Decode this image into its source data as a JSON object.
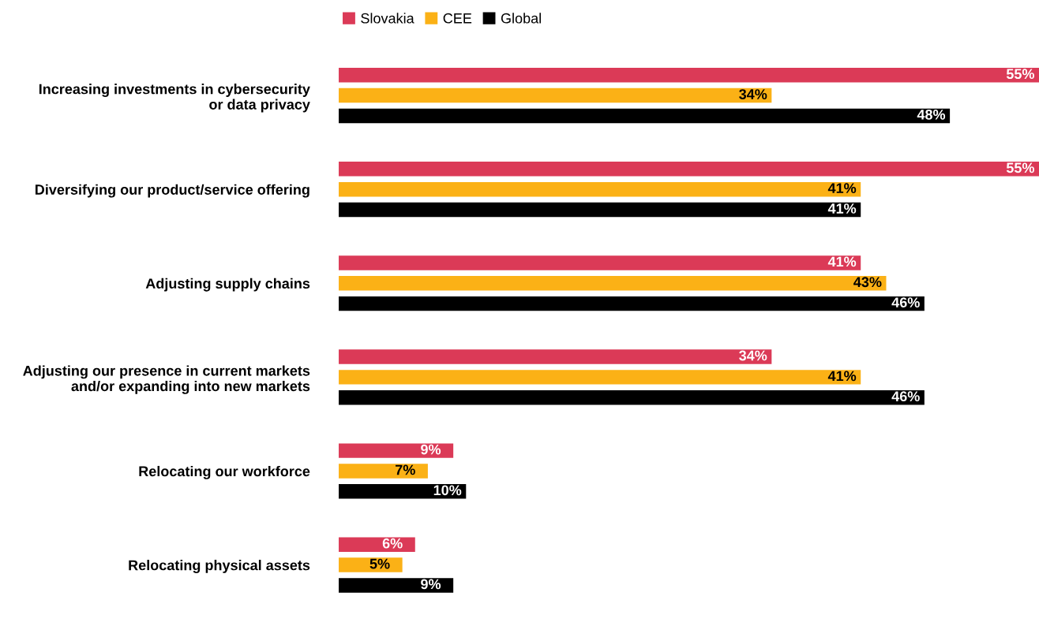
{
  "chart_data": {
    "type": "bar",
    "orientation": "horizontal",
    "categories": [
      "Increasing investments in cybersecurity\nor data privacy",
      "Diversifying our product/service offering",
      "Adjusting supply chains",
      "Adjusting our presence in current markets\nand/or expanding into new markets",
      "Relocating our workforce",
      "Relocating physical assets"
    ],
    "series": [
      {
        "name": "Slovakia",
        "color": "#db3a57",
        "values": [
          55,
          55,
          41,
          34,
          9,
          6
        ],
        "value_labels": [
          "55%",
          "55%",
          "41%",
          "34%",
          "9%",
          "6%"
        ]
      },
      {
        "name": "CEE",
        "color": "#fbb116",
        "values": [
          34,
          41,
          43,
          41,
          7,
          5
        ],
        "value_labels": [
          "34%",
          "41%",
          "43%",
          "41%",
          "7%",
          "5%"
        ]
      },
      {
        "name": "Global",
        "color": "#000000",
        "values": [
          48,
          41,
          46,
          46,
          10,
          9
        ],
        "value_labels": [
          "48%",
          "41%",
          "46%",
          "46%",
          "10%",
          "9%"
        ]
      }
    ],
    "legend": "top",
    "grid": false
  }
}
